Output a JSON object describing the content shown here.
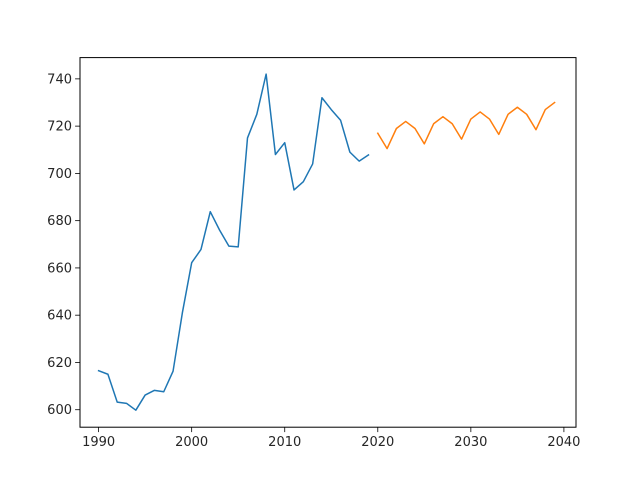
{
  "chart_data": {
    "type": "line",
    "title": "",
    "xlabel": "",
    "ylabel": "",
    "xlim": [
      1988,
      2041.3
    ],
    "ylim": [
      592.6,
      749.0
    ],
    "x_ticks": [
      1990,
      2000,
      2010,
      2020,
      2030,
      2040
    ],
    "y_ticks": [
      600,
      620,
      640,
      660,
      680,
      700,
      720,
      740
    ],
    "grid": false,
    "series": [
      {
        "color": "#1f77b4",
        "x": [
          1990,
          1991,
          1992,
          1993,
          1994,
          1995,
          1996,
          1997,
          1998,
          1999,
          2000,
          2001,
          2002,
          2003,
          2004,
          2005,
          2006,
          2007,
          2008,
          2009,
          2010,
          2011,
          2012,
          2013,
          2014,
          2015,
          2016,
          2017,
          2018,
          2019
        ],
        "values": [
          616.5,
          615.0,
          603.2,
          602.7,
          599.8,
          606.2,
          608.2,
          607.6,
          616.3,
          641.0,
          662.2,
          667.8,
          683.8,
          676.0,
          669.2,
          668.9,
          715.0,
          725.0,
          742.0,
          708.0,
          713.0,
          693.0,
          696.5,
          704.0,
          732.0,
          727.0,
          722.5,
          709.0,
          705.2,
          707.8
        ]
      },
      {
        "color": "#ff7f0e",
        "x": [
          2020,
          2021,
          2022,
          2023,
          2024,
          2025,
          2026,
          2027,
          2028,
          2029,
          2030,
          2031,
          2032,
          2033,
          2034,
          2035,
          2036,
          2037,
          2038,
          2039
        ],
        "values": [
          717.0,
          710.5,
          719.0,
          722.0,
          719.0,
          712.5,
          721.0,
          724.0,
          721.0,
          714.5,
          723.0,
          726.0,
          723.0,
          716.5,
          725.0,
          728.0,
          725.0,
          718.5,
          727.0,
          730.0
        ]
      }
    ]
  }
}
